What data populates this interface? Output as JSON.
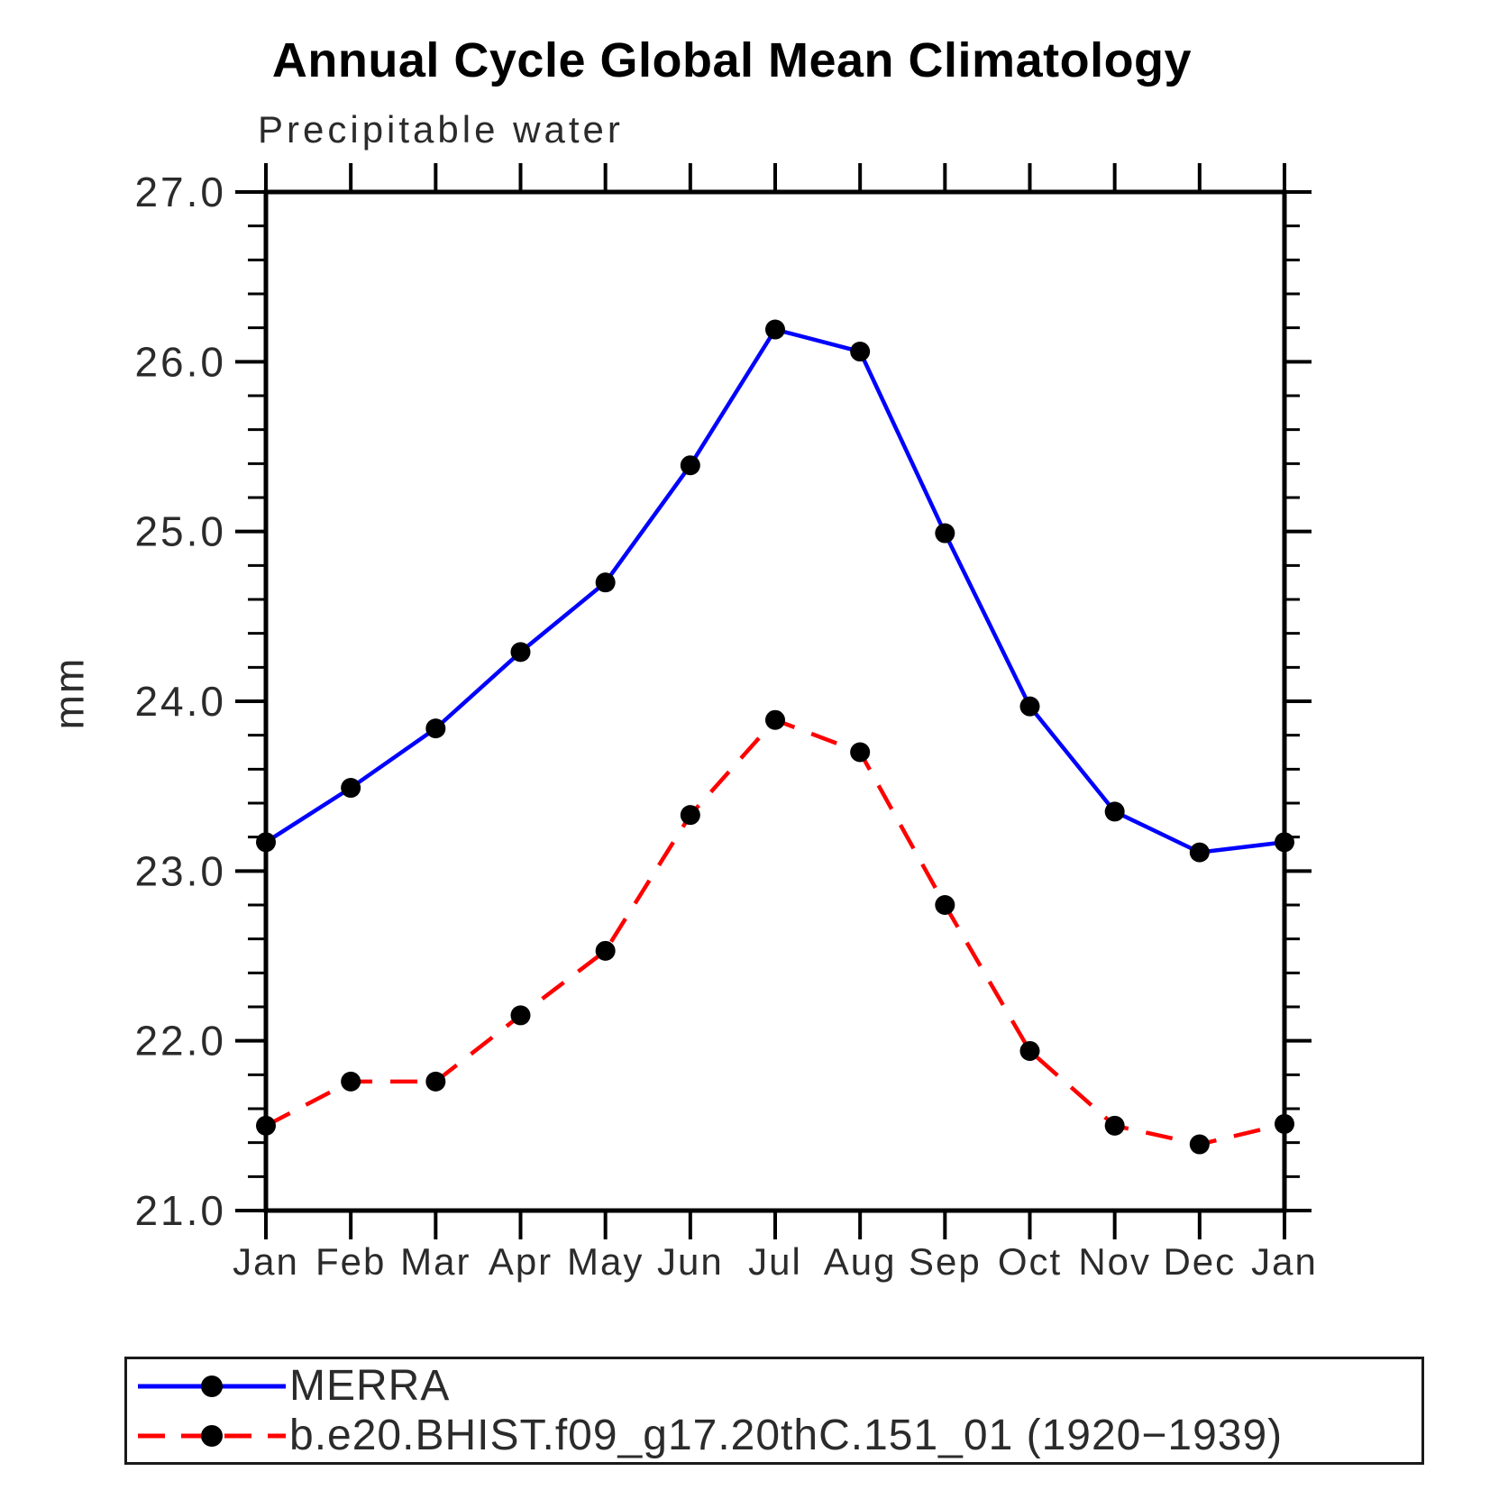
{
  "page": {
    "background": "#ffffff"
  },
  "chart_data": {
    "type": "line",
    "title": "Annual Cycle Global Mean Climatology",
    "subtitle": "Precipitable water",
    "ylabel": "mm",
    "categories": [
      "Jan",
      "Feb",
      "Mar",
      "Apr",
      "May",
      "Jun",
      "Jul",
      "Aug",
      "Sep",
      "Oct",
      "Nov",
      "Dec",
      "Jan"
    ],
    "ylim": [
      21.0,
      27.0
    ],
    "ytick_major": [
      21.0,
      22.0,
      23.0,
      24.0,
      25.0,
      26.0,
      27.0
    ],
    "ytick_labels": [
      "21.0",
      "22.0",
      "23.0",
      "24.0",
      "25.0",
      "26.0",
      "27.0"
    ],
    "y_minor_interval": 0.2,
    "grid": false,
    "legend_position": "bottom",
    "axis_color": "#000000",
    "marker_color": "#000000",
    "series": [
      {
        "name": "MERRA",
        "color": "#0000ff",
        "style": "solid",
        "marker": "circle",
        "values": [
          23.17,
          23.49,
          23.84,
          24.29,
          24.7,
          25.39,
          26.19,
          26.06,
          24.99,
          23.97,
          23.35,
          23.11,
          23.17
        ]
      },
      {
        "name": "b.e20.BHIST.f09_g17.20thC.151_01 (1920−1939)",
        "color": "#ff0000",
        "style": "dashed",
        "marker": "circle",
        "values": [
          21.5,
          21.76,
          21.76,
          22.15,
          22.53,
          23.33,
          23.89,
          23.7,
          22.8,
          21.94,
          21.5,
          21.39,
          21.51
        ]
      }
    ]
  }
}
